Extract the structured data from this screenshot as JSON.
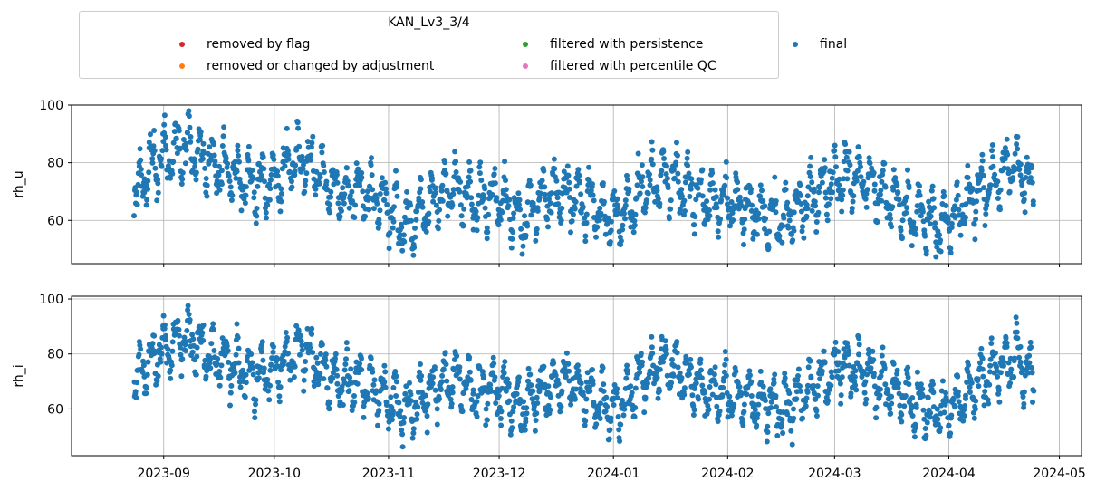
{
  "legend": {
    "title": "KAN_Lv3_3/4",
    "items": [
      {
        "label": "removed by flag",
        "color": "#d62728"
      },
      {
        "label": "removed or changed by adjustment",
        "color": "#ff7f0e"
      },
      {
        "label": "filtered with persistence",
        "color": "#2ca02c"
      },
      {
        "label": "filtered with percentile QC",
        "color": "#e377c2"
      },
      {
        "label": "final",
        "color": "#1f77b4"
      }
    ]
  },
  "chart_data": [
    {
      "type": "scatter",
      "ylabel": "rh_u",
      "xlabel": "",
      "xlim": [
        "2023-08-07",
        "2024-05-07"
      ],
      "ylim": [
        45,
        100
      ],
      "yticks": [
        60,
        80,
        100
      ],
      "grid": true,
      "legend": "top-left",
      "series": [
        {
          "name": "final",
          "color": "#1f77b4",
          "x_range": [
            "2023-08-24",
            "2024-04-24"
          ],
          "profile_x": [
            "2023-08-24",
            "2023-08-28",
            "2023-09-03",
            "2023-09-08",
            "2023-09-13",
            "2023-09-18",
            "2023-09-25",
            "2023-10-01",
            "2023-10-07",
            "2023-10-12",
            "2023-10-18",
            "2023-10-25",
            "2023-11-01",
            "2023-11-06",
            "2023-11-12",
            "2023-11-18",
            "2023-11-25",
            "2023-12-01",
            "2023-12-07",
            "2023-12-13",
            "2023-12-20",
            "2023-12-27",
            "2024-01-02",
            "2024-01-08",
            "2024-01-14",
            "2024-01-20",
            "2024-01-27",
            "2024-02-03",
            "2024-02-10",
            "2024-02-17",
            "2024-02-24",
            "2024-03-02",
            "2024-03-09",
            "2024-03-16",
            "2024-03-23",
            "2024-03-30",
            "2024-04-06",
            "2024-04-13",
            "2024-04-19",
            "2024-04-24"
          ],
          "profile_y": [
            68,
            78,
            84,
            86,
            80,
            78,
            72,
            74,
            82,
            78,
            70,
            70,
            64,
            58,
            66,
            72,
            66,
            68,
            60,
            68,
            70,
            64,
            60,
            70,
            76,
            72,
            66,
            66,
            62,
            60,
            68,
            76,
            74,
            68,
            62,
            58,
            66,
            74,
            80,
            70
          ]
        }
      ]
    },
    {
      "type": "scatter",
      "ylabel": "rh_i",
      "xlabel": "",
      "xlim": [
        "2023-08-07",
        "2024-05-07"
      ],
      "ylim": [
        43,
        101
      ],
      "yticks": [
        60,
        80,
        100
      ],
      "xticks": [
        "2023-09",
        "2023-10",
        "2023-11",
        "2023-12",
        "2024-01",
        "2024-02",
        "2024-03",
        "2024-04",
        "2024-05"
      ],
      "grid": true,
      "series": [
        {
          "name": "final",
          "color": "#1f77b4",
          "x_range": [
            "2023-08-24",
            "2024-04-24"
          ],
          "profile_x": [
            "2023-08-24",
            "2023-08-28",
            "2023-09-03",
            "2023-09-08",
            "2023-09-13",
            "2023-09-18",
            "2023-09-25",
            "2023-10-01",
            "2023-10-07",
            "2023-10-12",
            "2023-10-18",
            "2023-10-25",
            "2023-11-01",
            "2023-11-06",
            "2023-11-12",
            "2023-11-18",
            "2023-11-25",
            "2023-12-01",
            "2023-12-07",
            "2023-12-13",
            "2023-12-20",
            "2023-12-27",
            "2024-01-02",
            "2024-01-08",
            "2024-01-14",
            "2024-01-20",
            "2024-01-27",
            "2024-02-03",
            "2024-02-10",
            "2024-02-17",
            "2024-02-24",
            "2024-03-02",
            "2024-03-09",
            "2024-03-16",
            "2024-03-23",
            "2024-03-30",
            "2024-04-06",
            "2024-04-13",
            "2024-04-19",
            "2024-04-24"
          ],
          "profile_y": [
            68,
            78,
            84,
            86,
            80,
            78,
            72,
            74,
            82,
            78,
            70,
            70,
            64,
            58,
            66,
            72,
            66,
            68,
            60,
            68,
            70,
            64,
            60,
            70,
            76,
            72,
            66,
            66,
            62,
            60,
            68,
            76,
            74,
            68,
            62,
            58,
            66,
            74,
            80,
            70
          ]
        }
      ]
    }
  ]
}
